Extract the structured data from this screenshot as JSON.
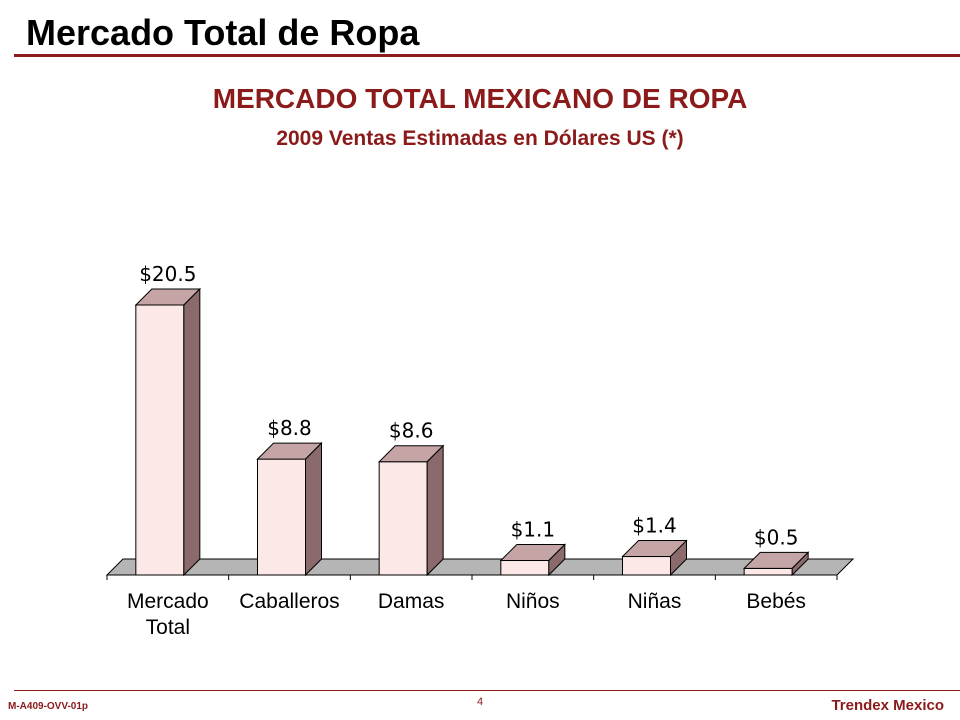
{
  "slide": {
    "title": "Mercado Total de Ropa"
  },
  "chart_data": {
    "type": "bar",
    "title": "MERCADO TOTAL MEXICANO DE ROPA",
    "subtitle": "2009 Ventas Estimadas en Dólares US (*)",
    "categories": [
      [
        "Mercado",
        "Total"
      ],
      [
        "Caballeros"
      ],
      [
        "Damas"
      ],
      [
        "Niños"
      ],
      [
        "Niñas"
      ],
      [
        "Bebés"
      ]
    ],
    "values": [
      20.5,
      8.8,
      8.6,
      1.1,
      1.4,
      0.5
    ],
    "data_labels": [
      "$20.5",
      "$8.8",
      "$8.6",
      "$1.1",
      "$1.4",
      "$0.5"
    ],
    "xlabel": "",
    "ylabel": "",
    "ylim": [
      0,
      22
    ],
    "grid": false,
    "legend": "none",
    "colors": {
      "bar_front": "#fde8e8",
      "bar_top": "#c4a4a4",
      "bar_side": "#8a6a6a",
      "floor": "#b5b5b5",
      "edge": "#000000"
    }
  },
  "footer": {
    "code": "M-A409-OVV-01p",
    "page": "4",
    "brand": "Trendex Mexico"
  }
}
